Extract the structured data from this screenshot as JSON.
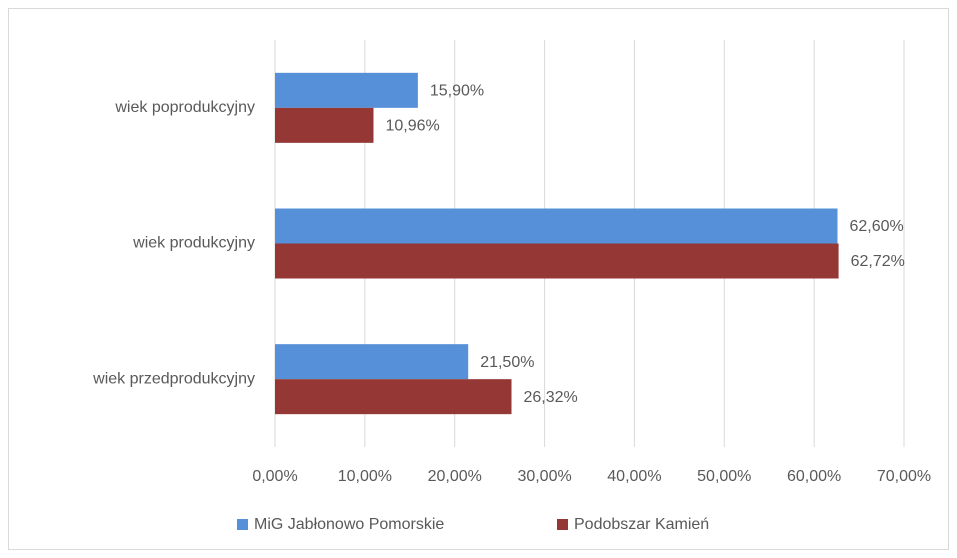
{
  "chart_data": {
    "type": "barh",
    "categories": [
      "wiek poprodukcyjny",
      "wiek produkcyjny",
      "wiek przedprodukcyjny"
    ],
    "series": [
      {
        "name": "MiG Jabłonowo Pomorskie",
        "color": "#5690d8",
        "values": [
          15.9,
          62.6,
          21.5
        ],
        "value_labels": [
          "15,90%",
          "62,60%",
          "21,50%"
        ]
      },
      {
        "name": "Podobszar Kamień",
        "color": "#953735",
        "values": [
          10.96,
          62.72,
          26.32
        ],
        "value_labels": [
          "10,96%",
          "62,72%",
          "26,32%"
        ]
      }
    ],
    "xlim": [
      0,
      70
    ],
    "xticks": [
      {
        "value": 0,
        "label": "0,00%"
      },
      {
        "value": 10,
        "label": "10,00%"
      },
      {
        "value": 20,
        "label": "20,00%"
      },
      {
        "value": 30,
        "label": "30,00%"
      },
      {
        "value": 40,
        "label": "40,00%"
      },
      {
        "value": 50,
        "label": "50,00%"
      },
      {
        "value": 60,
        "label": "60,00%"
      },
      {
        "value": 70,
        "label": "70,00%"
      }
    ],
    "grid": true,
    "legend": "bottom"
  }
}
